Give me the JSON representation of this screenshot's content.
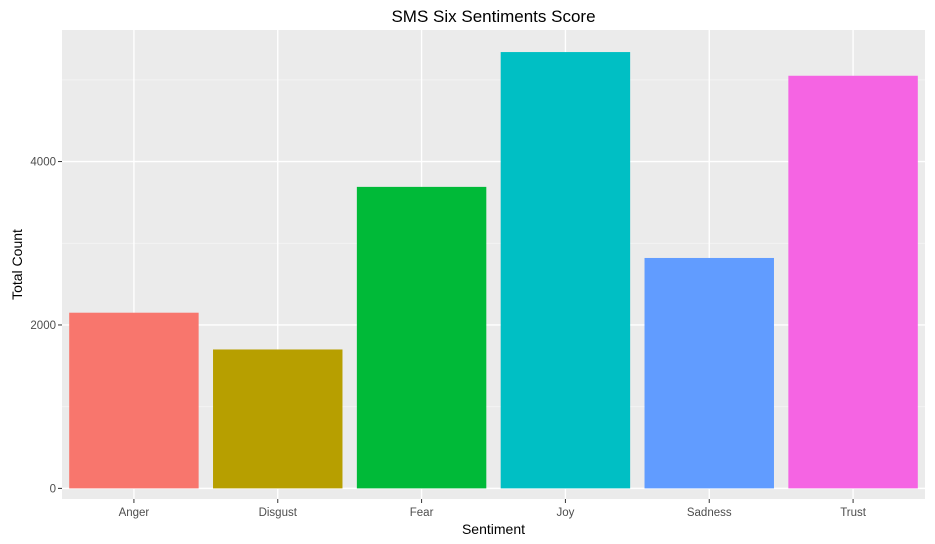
{
  "chart_data": {
    "type": "bar",
    "title": "SMS Six Sentiments Score",
    "xlabel": "Sentiment",
    "ylabel": "Total Count",
    "categories": [
      "Anger",
      "Disgust",
      "Fear",
      "Joy",
      "Sadness",
      "Trust"
    ],
    "values": [
      2150,
      1700,
      3690,
      5340,
      2820,
      5050
    ],
    "colors": [
      "#F8766D",
      "#B79F00",
      "#00BA38",
      "#00BFC4",
      "#619CFF",
      "#F564E3"
    ],
    "ylim": [
      -130,
      5610
    ],
    "yticks": [
      0,
      2000,
      4000
    ],
    "ytick_labels": [
      "0",
      "2000",
      "4000"
    ],
    "grid": true,
    "panel_background": "#EBEBEB",
    "legend": "none"
  }
}
